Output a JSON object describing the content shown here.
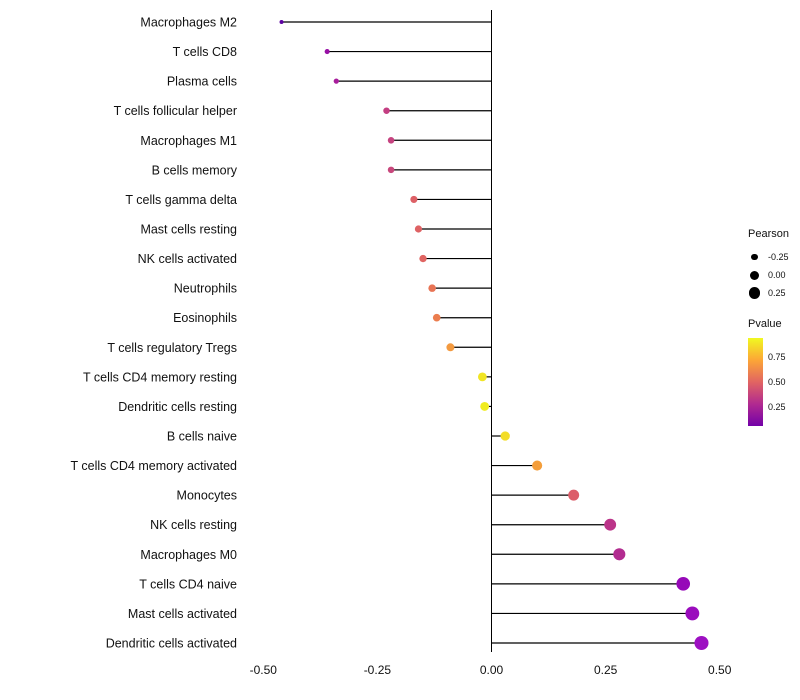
{
  "page": {
    "background": "#ffffff",
    "text_color": "#111111"
  },
  "chart_data": {
    "type": "lollipop",
    "orientation": "horizontal",
    "title": "",
    "xlabel": "",
    "ylabel": "",
    "grid": "off",
    "zero_line": true,
    "stem_color": "#000000",
    "x_axis": {
      "range": [
        -0.54,
        0.54
      ],
      "ticks": [
        {
          "label": "-0.50",
          "value": -0.5
        },
        {
          "label": "-0.25",
          "value": -0.25
        },
        {
          "label": "0.00",
          "value": 0.0
        },
        {
          "label": "0.25",
          "value": 0.25
        },
        {
          "label": "0.50",
          "value": 0.5
        }
      ]
    },
    "items": [
      {
        "label": "Macrophages M2",
        "pearson": -0.46,
        "pvalue": 0.03,
        "color": "#5E02A3"
      },
      {
        "label": "T cells CD8",
        "pearson": -0.36,
        "pvalue": 0.1,
        "color": "#9810A5"
      },
      {
        "label": "Plasma cells",
        "pearson": -0.34,
        "pvalue": 0.14,
        "color": "#A81E9C"
      },
      {
        "label": "T cells follicular helper",
        "pearson": -0.23,
        "pvalue": 0.31,
        "color": "#C43E82"
      },
      {
        "label": "Macrophages M1",
        "pearson": -0.22,
        "pvalue": 0.32,
        "color": "#C64380"
      },
      {
        "label": "B cells memory",
        "pearson": -0.22,
        "pvalue": 0.33,
        "color": "#C8477C"
      },
      {
        "label": "T cells gamma delta",
        "pearson": -0.17,
        "pvalue": 0.46,
        "color": "#DD6066"
      },
      {
        "label": "Mast cells resting",
        "pearson": -0.16,
        "pvalue": 0.47,
        "color": "#DE6264"
      },
      {
        "label": "NK cells activated",
        "pearson": -0.15,
        "pvalue": 0.48,
        "color": "#E06562"
      },
      {
        "label": "Neutrophils",
        "pearson": -0.13,
        "pvalue": 0.55,
        "color": "#E87455"
      },
      {
        "label": "Eosinophils",
        "pearson": -0.12,
        "pvalue": 0.58,
        "color": "#EB7D4E"
      },
      {
        "label": "T cells regulatory Tregs",
        "pearson": -0.09,
        "pvalue": 0.67,
        "color": "#F39A40"
      },
      {
        "label": "T cells CD4 memory resting",
        "pearson": -0.02,
        "pvalue": 0.9,
        "color": "#F1E524"
      },
      {
        "label": "Dendritic cells resting",
        "pearson": -0.015,
        "pvalue": 0.93,
        "color": "#F0EC20"
      },
      {
        "label": "B cells naive",
        "pearson": 0.03,
        "pvalue": 0.87,
        "color": "#F3DD28"
      },
      {
        "label": "T cells CD4 memory activated",
        "pearson": 0.1,
        "pvalue": 0.68,
        "color": "#F49E3B"
      },
      {
        "label": "Monocytes",
        "pearson": 0.18,
        "pvalue": 0.44,
        "color": "#DC5D69"
      },
      {
        "label": "NK cells resting",
        "pearson": 0.26,
        "pvalue": 0.26,
        "color": "#BB3489"
      },
      {
        "label": "Macrophages M0",
        "pearson": 0.28,
        "pvalue": 0.23,
        "color": "#B22C90"
      },
      {
        "label": "T cells CD4 naive",
        "pearson": 0.42,
        "pvalue": 0.07,
        "color": "#9609B8"
      },
      {
        "label": "Mast cells activated",
        "pearson": 0.44,
        "pvalue": 0.06,
        "color": "#9A0CBD"
      },
      {
        "label": "Dendritic cells activated",
        "pearson": 0.46,
        "pvalue": 0.05,
        "color": "#9D10C2"
      }
    ],
    "legends": {
      "size": {
        "title": "Pearson",
        "dot_color": "#000000",
        "entries": [
          {
            "label": "-0.25",
            "value": -0.25
          },
          {
            "label": "0.00",
            "value": 0.0
          },
          {
            "label": "0.25",
            "value": 0.25
          }
        ]
      },
      "color": {
        "title": "Pvalue",
        "entries": [
          {
            "label": "0.75",
            "pos": 0.22
          },
          {
            "label": "0.50",
            "pos": 0.5
          },
          {
            "label": "0.25",
            "pos": 0.78
          }
        ],
        "gradient_top_to_bottom": [
          "#F0F921",
          "#FCA636",
          "#E16462",
          "#B12A90",
          "#7301A8"
        ]
      }
    }
  }
}
